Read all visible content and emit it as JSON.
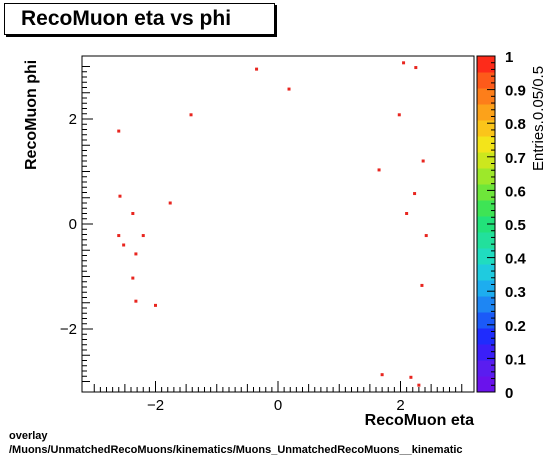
{
  "chart_data": {
    "type": "scatter",
    "title": "RecoMuon eta vs phi",
    "xlabel": "RecoMuon eta",
    "ylabel": "RecoMuon phi",
    "zlabel": "Entries.0.05/0.5",
    "xlim": [
      -3.2,
      3.2
    ],
    "ylim": [
      -3.2,
      3.2
    ],
    "zlim": [
      0,
      1
    ],
    "x_ticks": [
      -2,
      0,
      2
    ],
    "y_ticks": [
      -2,
      0,
      2
    ],
    "z_ticks": [
      0,
      0.1,
      0.2,
      0.3,
      0.4,
      0.5,
      0.6,
      0.7,
      0.8,
      0.9,
      1
    ],
    "x_tick_labels": [
      "−2",
      "0",
      "2"
    ],
    "y_tick_labels": [
      "−2",
      "0",
      "2"
    ],
    "z_tick_labels": [
      "0",
      "0.1",
      "0.2",
      "0.3",
      "0.4",
      "0.5",
      "0.6",
      "0.7",
      "0.8",
      "0.9",
      "1"
    ],
    "marker_color": "#e8251f",
    "palette": [
      "#6a12ec",
      "#5a1df0",
      "#3b1ff8",
      "#1f2cfd",
      "#1b5af8",
      "#1e86f3",
      "#1dadef",
      "#1fcbdf",
      "#20dcc0",
      "#22e09c",
      "#22e27a",
      "#3ee455",
      "#6ee63a",
      "#9de82a",
      "#cce71e",
      "#f3e41a",
      "#fbc51a",
      "#fca21a",
      "#fd7e1a",
      "#fd5a1a",
      "#fd2b1a"
    ],
    "points": [
      {
        "x": -2.6,
        "y": 1.77
      },
      {
        "x": -2.58,
        "y": 0.53
      },
      {
        "x": -2.6,
        "y": -0.22
      },
      {
        "x": -2.52,
        "y": -0.4
      },
      {
        "x": -2.37,
        "y": 0.2
      },
      {
        "x": -2.32,
        "y": -0.57
      },
      {
        "x": -2.2,
        "y": -0.22
      },
      {
        "x": -2.37,
        "y": -1.03
      },
      {
        "x": -2.32,
        "y": -1.47
      },
      {
        "x": -2.0,
        "y": -1.55
      },
      {
        "x": -1.76,
        "y": 0.4
      },
      {
        "x": -1.42,
        "y": 2.08
      },
      {
        "x": -0.35,
        "y": 2.95
      },
      {
        "x": 0.18,
        "y": 2.57
      },
      {
        "x": 1.65,
        "y": 1.03
      },
      {
        "x": 1.98,
        "y": 2.08
      },
      {
        "x": 2.05,
        "y": 3.07
      },
      {
        "x": 2.1,
        "y": 0.2
      },
      {
        "x": 2.23,
        "y": 0.58
      },
      {
        "x": 2.25,
        "y": 2.98
      },
      {
        "x": 2.37,
        "y": 1.2
      },
      {
        "x": 2.42,
        "y": -0.22
      },
      {
        "x": 2.35,
        "y": -1.17
      },
      {
        "x": 1.7,
        "y": -2.87
      },
      {
        "x": 2.17,
        "y": -2.92
      },
      {
        "x": 2.3,
        "y": -3.07
      }
    ]
  },
  "footer": {
    "line1": "overlay",
    "line2": "/Muons/UnmatchedRecoMuons/kinematics/Muons_UnmatchedRecoMuons__kinematic"
  }
}
